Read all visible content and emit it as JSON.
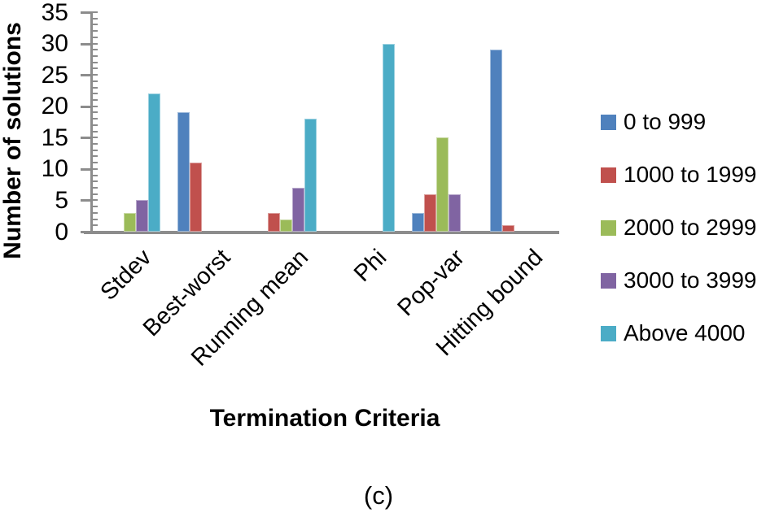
{
  "figure": {
    "caption": "(c)"
  },
  "chart_data": {
    "type": "bar",
    "title": "",
    "xlabel": "Termination Criteria",
    "ylabel": "Number of solutions",
    "categories": [
      "Stdev",
      "Best-worst",
      "Running mean",
      "Phi",
      "Pop-var",
      "Hitting bound"
    ],
    "series": [
      {
        "name": "0 to 999",
        "color": "#4F81BD",
        "values": [
          0,
          19,
          0,
          0,
          3,
          29
        ]
      },
      {
        "name": "1000 to 1999",
        "color": "#C0504D",
        "values": [
          0,
          11,
          3,
          0,
          6,
          1
        ]
      },
      {
        "name": "2000 to 2999",
        "color": "#9BBB59",
        "values": [
          3,
          0,
          2,
          0,
          15,
          0
        ]
      },
      {
        "name": "3000 to 3999",
        "color": "#8064A2",
        "values": [
          5,
          0,
          7,
          0,
          6,
          0
        ]
      },
      {
        "name": "Above 4000",
        "color": "#4BACC6",
        "values": [
          22,
          0,
          18,
          30,
          0,
          0
        ]
      }
    ],
    "ylim": [
      0,
      35
    ],
    "yticks": [
      0,
      5,
      10,
      15,
      20,
      25,
      30,
      35
    ],
    "minor_tick_step": 1,
    "grid": false,
    "legend_position": "right",
    "axis_color": "#8C8C8C"
  }
}
